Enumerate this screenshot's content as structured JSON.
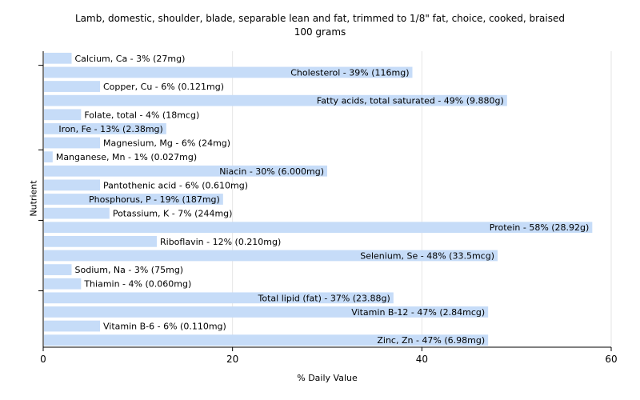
{
  "chart_data": {
    "type": "bar",
    "orientation": "horizontal",
    "title": "Lamb, domestic, shoulder, blade, separable lean and fat, trimmed to 1/8\" fat, choice, cooked, braised",
    "subtitle": "100 grams",
    "xlabel": "% Daily Value",
    "ylabel": "Nutrient",
    "xlim": [
      0,
      60
    ],
    "xticks": [
      "0",
      "20",
      "40",
      "60"
    ],
    "grid": true,
    "bar_color": "#c6dcf8",
    "categories": [
      "Calcium, Ca",
      "Cholesterol",
      "Copper, Cu",
      "Fatty acids, total saturated",
      "Folate, total",
      "Iron, Fe",
      "Magnesium, Mg",
      "Manganese, Mn",
      "Niacin",
      "Pantothenic acid",
      "Phosphorus, P",
      "Potassium, K",
      "Protein",
      "Riboflavin",
      "Selenium, Se",
      "Sodium, Na",
      "Thiamin",
      "Total lipid (fat)",
      "Vitamin B-12",
      "Vitamin B-6",
      "Zinc, Zn"
    ],
    "values": [
      3,
      39,
      6,
      49,
      4,
      13,
      6,
      1,
      30,
      6,
      19,
      7,
      58,
      12,
      48,
      3,
      4,
      37,
      47,
      6,
      47
    ],
    "labels": [
      "Calcium, Ca - 3% (27mg)",
      "Cholesterol - 39% (116mg)",
      "Copper, Cu - 6% (0.121mg)",
      "Fatty acids, total saturated - 49% (9.880g)",
      "Folate, total - 4% (18mcg)",
      "Iron, Fe - 13% (2.38mg)",
      "Magnesium, Mg - 6% (24mg)",
      "Manganese, Mn - 1% (0.027mg)",
      "Niacin - 30% (6.000mg)",
      "Pantothenic acid - 6% (0.610mg)",
      "Phosphorus, P - 19% (187mg)",
      "Potassium, K - 7% (244mg)",
      "Protein - 58% (28.92g)",
      "Riboflavin - 12% (0.210mg)",
      "Selenium, Se - 48% (33.5mcg)",
      "Sodium, Na - 3% (75mg)",
      "Thiamin - 4% (0.060mg)",
      "Total lipid (fat) - 37% (23.88g)",
      "Vitamin B-12 - 47% (2.84mcg)",
      "Vitamin B-6 - 6% (0.110mg)",
      "Zinc, Zn - 47% (6.98mg)"
    ]
  }
}
